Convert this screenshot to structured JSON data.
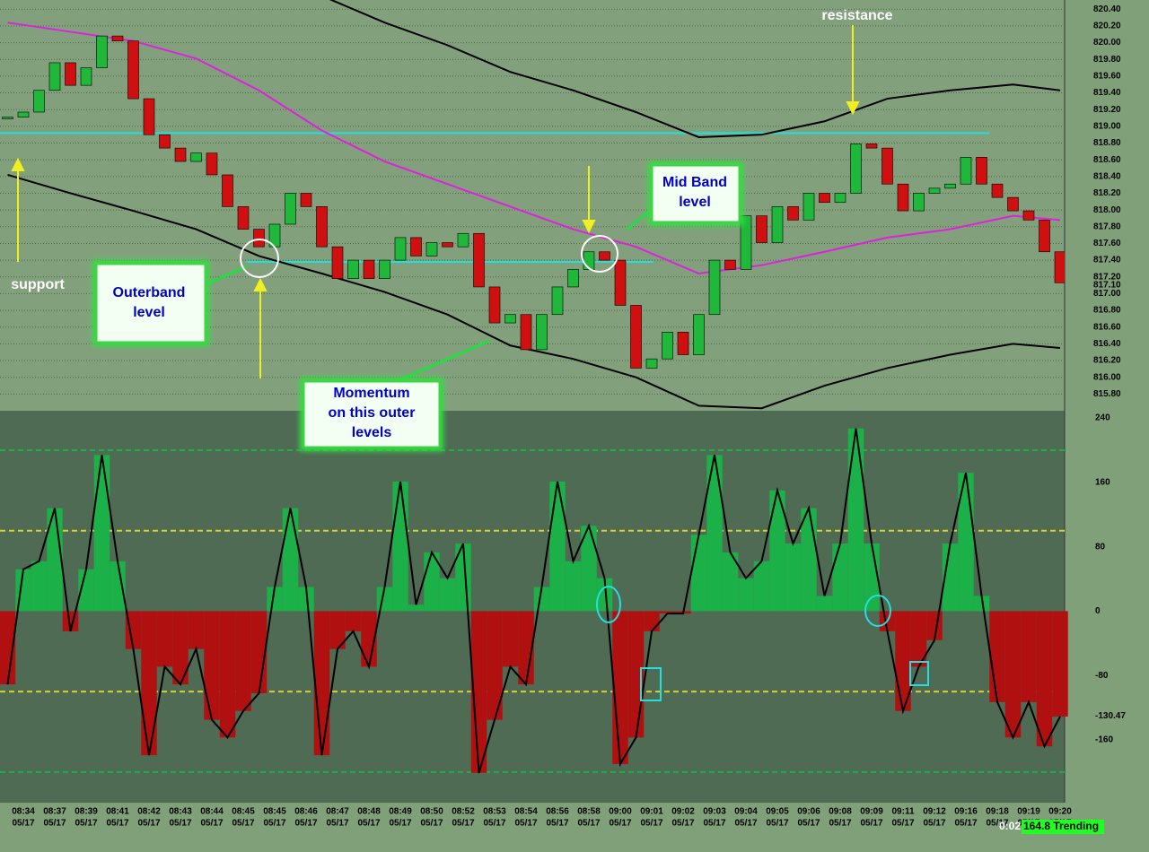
{
  "chart_data": [
    {
      "type": "candle",
      "x_sublabel": "05/17",
      "categories": [
        null,
        "08:34",
        null,
        "08:37",
        null,
        "08:39",
        null,
        "08:41",
        null,
        "08:42",
        null,
        "08:43",
        null,
        "08:44",
        null,
        "08:45",
        null,
        "08:45",
        null,
        "08:46",
        null,
        "08:47",
        null,
        "08:48",
        null,
        "08:49",
        null,
        "08:50",
        null,
        "08:52",
        null,
        "08:53",
        null,
        "08:54",
        null,
        "08:56",
        null,
        "08:58",
        null,
        "09:00",
        null,
        "09:01",
        null,
        "09:02",
        null,
        "09:03",
        null,
        "09:04",
        null,
        "09:05",
        null,
        "09:06",
        null,
        "09:08",
        null,
        "09:09",
        null,
        "09:11",
        null,
        "09:12",
        null,
        "09:16",
        null,
        "09:18",
        null,
        "09:19",
        null,
        "09:20"
      ],
      "values": [
        819.11,
        819.17,
        819.43,
        819.76,
        819.49,
        819.7,
        820.08,
        820.02,
        819.33,
        818.9,
        818.74,
        818.58,
        818.68,
        818.42,
        818.04,
        817.77,
        817.56,
        817.83,
        818.2,
        818.04,
        817.56,
        817.18,
        817.4,
        817.18,
        817.4,
        817.67,
        817.45,
        817.61,
        817.56,
        817.72,
        817.08,
        816.65,
        816.75,
        816.33,
        816.75,
        817.08,
        817.29,
        817.5,
        817.4,
        816.86,
        816.11,
        816.22,
        816.54,
        816.27,
        816.75,
        817.4,
        817.29,
        817.93,
        817.61,
        818.04,
        817.88,
        818.2,
        818.09,
        818.2,
        818.79,
        818.74,
        818.31,
        817.99,
        818.2,
        818.26,
        818.31,
        818.63,
        818.31,
        818.15,
        817.99,
        817.88,
        817.5,
        817.13
      ],
      "up_color": "#1fb83a",
      "down_color": "#d01010",
      "series": [
        {
          "name": "upper",
          "color": "#000000",
          "x": [
            20,
            24,
            28,
            32,
            36,
            40,
            44,
            48,
            52,
            56,
            60,
            64,
            67
          ],
          "values": [
            820.56,
            820.24,
            819.97,
            819.65,
            819.43,
            819.17,
            818.87,
            818.9,
            819.06,
            819.33,
            819.43,
            819.5,
            819.43
          ]
        },
        {
          "name": "mid",
          "color": "#e020e0",
          "x": [
            0,
            4,
            8,
            12,
            16,
            20,
            24,
            28,
            32,
            36,
            40,
            44,
            48,
            52,
            56,
            60,
            64,
            67
          ],
          "values": [
            820.24,
            820.13,
            820.02,
            819.81,
            819.43,
            818.95,
            818.58,
            818.31,
            818.04,
            817.77,
            817.56,
            817.24,
            817.34,
            817.5,
            817.67,
            817.77,
            817.93,
            817.88
          ]
        },
        {
          "name": "lower",
          "color": "#000000",
          "x": [
            0,
            4,
            8,
            12,
            16,
            20,
            24,
            28,
            32,
            36,
            40,
            44,
            48,
            52,
            56,
            60,
            64,
            67
          ],
          "values": [
            818.42,
            818.2,
            817.99,
            817.77,
            817.45,
            817.24,
            817.02,
            816.75,
            816.38,
            816.22,
            816.0,
            815.66,
            815.63,
            815.9,
            816.11,
            816.27,
            816.4,
            816.35
          ]
        }
      ],
      "hlines": [
        {
          "value": 818.92,
          "x": [
            -0.5,
            62.5
          ],
          "color": "#20e0e0"
        },
        {
          "value": 817.38,
          "x": [
            15.2,
            41.1
          ],
          "color": "#20e0e0"
        }
      ],
      "last": {
        "value": 817.1,
        "label": "817.10"
      },
      "ylim": [
        815.6,
        820.51
      ],
      "yticks": [
        {
          "value": 820.4,
          "label": "820.40"
        },
        {
          "value": 820.2,
          "label": "820.20"
        },
        {
          "value": 820.0,
          "label": "820.00"
        },
        {
          "value": 819.8,
          "label": "819.80"
        },
        {
          "value": 819.6,
          "label": "819.60"
        },
        {
          "value": 819.4,
          "label": "819.40"
        },
        {
          "value": 819.2,
          "label": "819.20"
        },
        {
          "value": 819.0,
          "label": "819.00"
        },
        {
          "value": 818.8,
          "label": "818.80"
        },
        {
          "value": 818.6,
          "label": "818.60"
        },
        {
          "value": 818.4,
          "label": "818.40"
        },
        {
          "value": 818.2,
          "label": "818.20"
        },
        {
          "value": 818.0,
          "label": "818.00"
        },
        {
          "value": 817.8,
          "label": "817.80"
        },
        {
          "value": 817.6,
          "label": "817.60"
        },
        {
          "value": 817.4,
          "label": "817.40"
        },
        {
          "value": 817.2,
          "label": "817.20"
        },
        {
          "value": 817.0,
          "label": "817.00"
        },
        {
          "value": 816.8,
          "label": "816.80"
        },
        {
          "value": 816.6,
          "label": "816.60"
        },
        {
          "value": 816.4,
          "label": "816.40"
        },
        {
          "value": 816.2,
          "label": "816.20"
        },
        {
          "value": 816.0,
          "label": "816.00"
        },
        {
          "value": 815.8,
          "label": "815.80"
        }
      ],
      "grid": true
    },
    {
      "type": "histogram-line",
      "pos_color": "#1cb048",
      "neg_color": "#b01010",
      "line_color": "#000000",
      "values": [
        -91,
        52,
        62,
        128,
        -25,
        52,
        194,
        62,
        -47,
        -179,
        -69,
        -91,
        -47,
        -135,
        -157,
        -124,
        -102,
        30,
        128,
        30,
        -179,
        -47,
        -25,
        -69,
        30,
        161,
        8,
        73,
        41,
        84,
        -201,
        -135,
        -69,
        -91,
        30,
        161,
        62,
        106,
        41,
        -190,
        -157,
        -25,
        -3,
        -3,
        95,
        194,
        73,
        41,
        62,
        150,
        84,
        128,
        19,
        84,
        227,
        84,
        -25,
        -124,
        -69,
        -36,
        84,
        172,
        19,
        -113,
        -157,
        -113,
        -168,
        -131
      ],
      "levels": [
        200,
        100,
        -100,
        -200
      ],
      "level_color": "#d8d030",
      "last": -130.47,
      "ylim": [
        -238,
        249
      ],
      "yticks": [
        240,
        160,
        80,
        0,
        -80,
        -160
      ]
    }
  ],
  "annotations": {
    "resistance": "resistance",
    "support": "support",
    "outerband": [
      "Outerband",
      "level"
    ],
    "midband": [
      "Mid Band",
      "level"
    ],
    "momentum": [
      "Momentum",
      "on this outer",
      "levels"
    ]
  },
  "status": {
    "time": "0:02",
    "text": "164.8 Trending"
  }
}
